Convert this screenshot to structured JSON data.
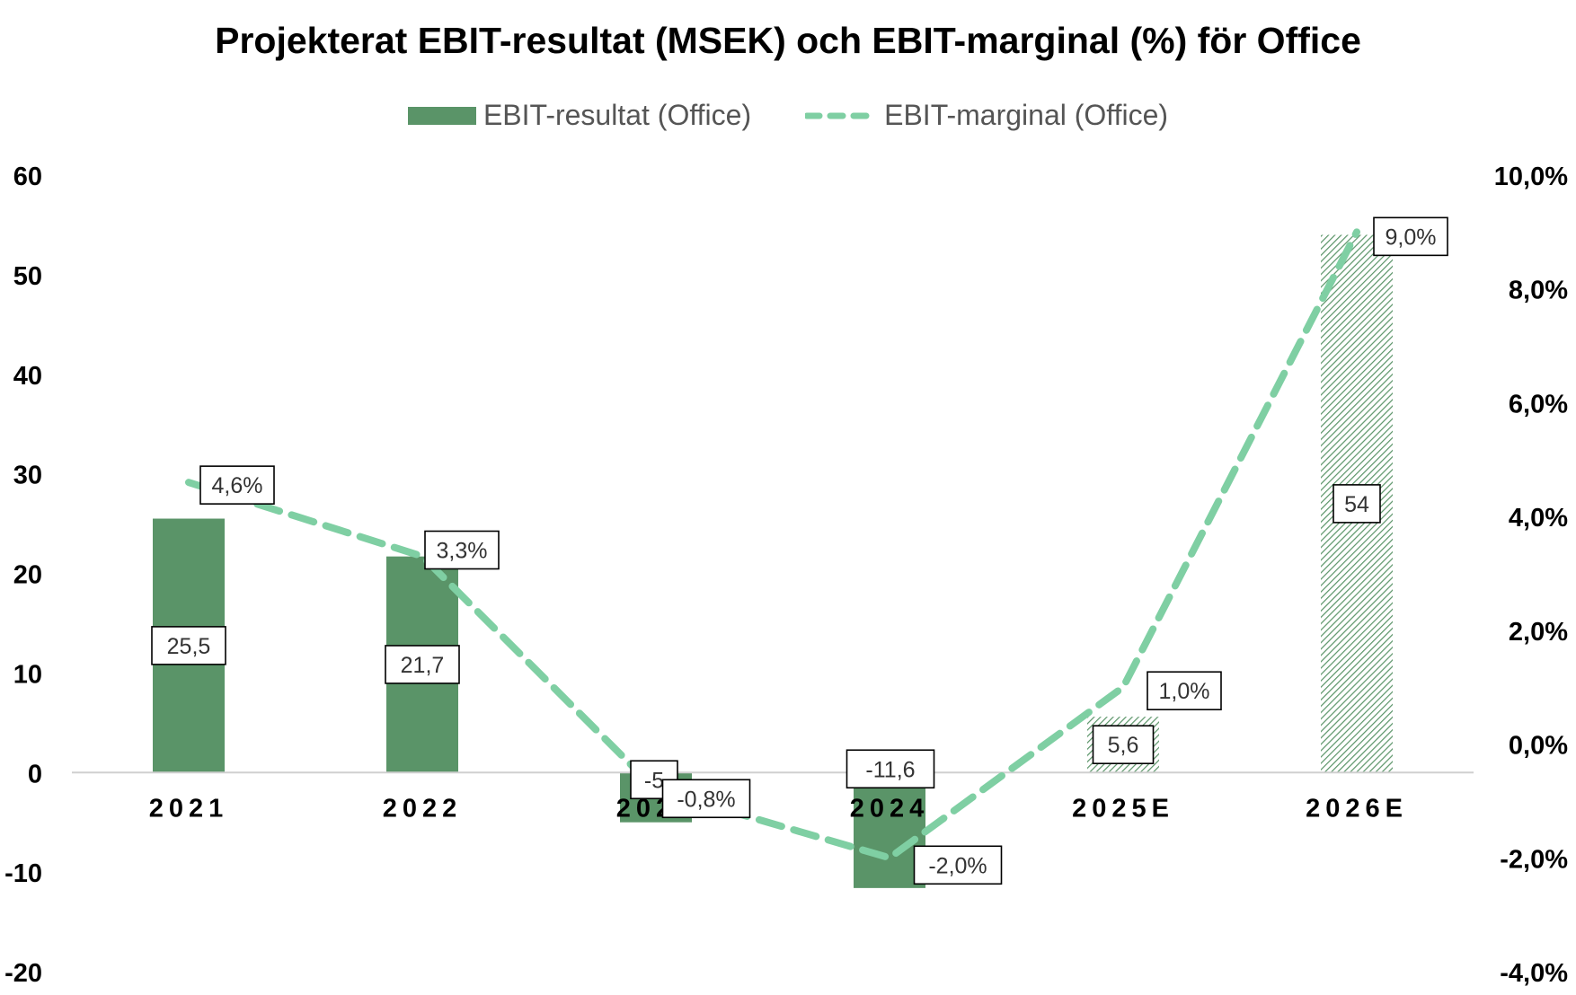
{
  "chart_data": {
    "type": "bar",
    "title": "Projekterat EBIT-resultat (MSEK) och EBIT-marginal (%) för Office",
    "categories": [
      "2021",
      "2022",
      "2023",
      "2024",
      "2025E",
      "2026E"
    ],
    "series": [
      {
        "name": "EBIT-resultat (Office)",
        "type": "bar",
        "axis": "left",
        "values": [
          25.5,
          21.7,
          -5,
          -11.6,
          5.6,
          54
        ],
        "labels": [
          "25,5",
          "21,7",
          "-5",
          "-11,6",
          "5,6",
          "54"
        ],
        "hatched": [
          false,
          false,
          false,
          false,
          true,
          true
        ]
      },
      {
        "name": "EBIT-marginal (Office)",
        "type": "line",
        "style": "dashed",
        "axis": "right",
        "values": [
          4.6,
          3.3,
          -0.8,
          -2.0,
          1.0,
          9.0
        ],
        "labels": [
          "4,6%",
          "3,3%",
          "-0,8%",
          "-2,0%",
          "1,0%",
          "9,0%"
        ]
      }
    ],
    "y_left": {
      "min": -20,
      "max": 60,
      "ticks": [
        "60",
        "50",
        "40",
        "30",
        "20",
        "10",
        "0",
        "-10",
        "-20"
      ]
    },
    "y_right": {
      "min": -4,
      "max": 10,
      "ticks": [
        "10,0%",
        "8,0%",
        "6,0%",
        "4,0%",
        "2,0%",
        "0,0%",
        "-2,0%",
        "-4,0%"
      ]
    },
    "legend_position": "top-center",
    "grid": false
  },
  "colors": {
    "bar": "#5a9468",
    "line": "#7fcfa3",
    "axis_line": "#d0d0d0",
    "label_border": "#000000"
  }
}
